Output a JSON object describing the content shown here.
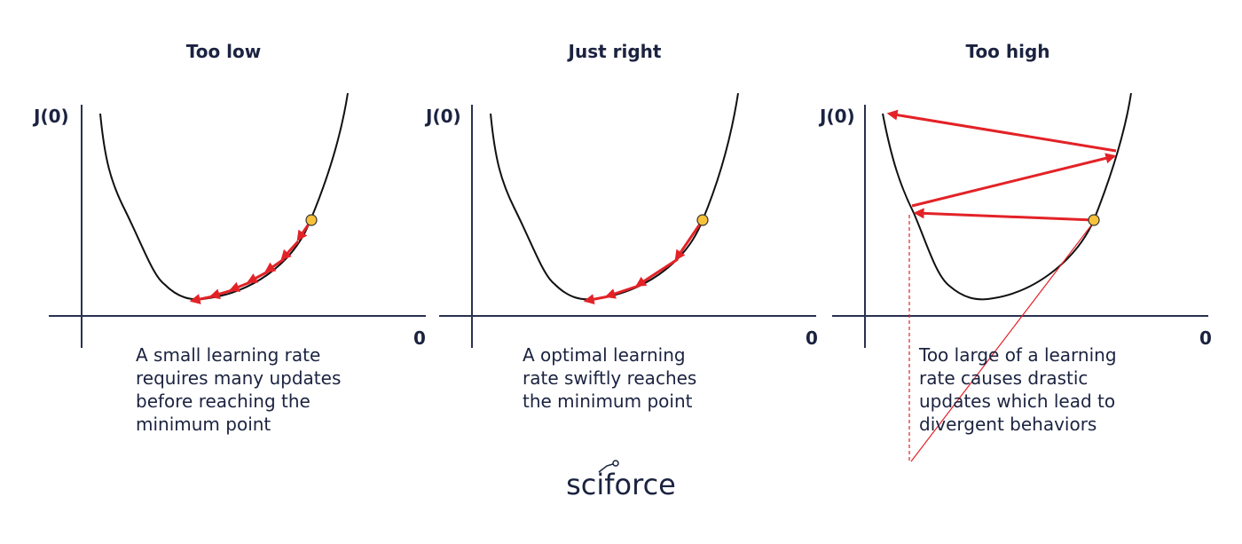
{
  "panels": [
    {
      "title": "Too low",
      "y_label": "J(0)",
      "x_label": "0",
      "caption": [
        "A small learning rate",
        "requires many updates",
        "before reaching the",
        "minimum point"
      ]
    },
    {
      "title": "Just right",
      "y_label": "J(0)",
      "x_label": "0",
      "caption": [
        "A optimal learning",
        "rate swiftly reaches",
        "the minimum point"
      ]
    },
    {
      "title": "Too high",
      "y_label": "J(0)",
      "x_label": "0",
      "caption": [
        "Too large of a learning",
        "rate causes drastic",
        "updates which lead to",
        "divergent behaviors"
      ]
    }
  ],
  "logo": "sciforce"
}
